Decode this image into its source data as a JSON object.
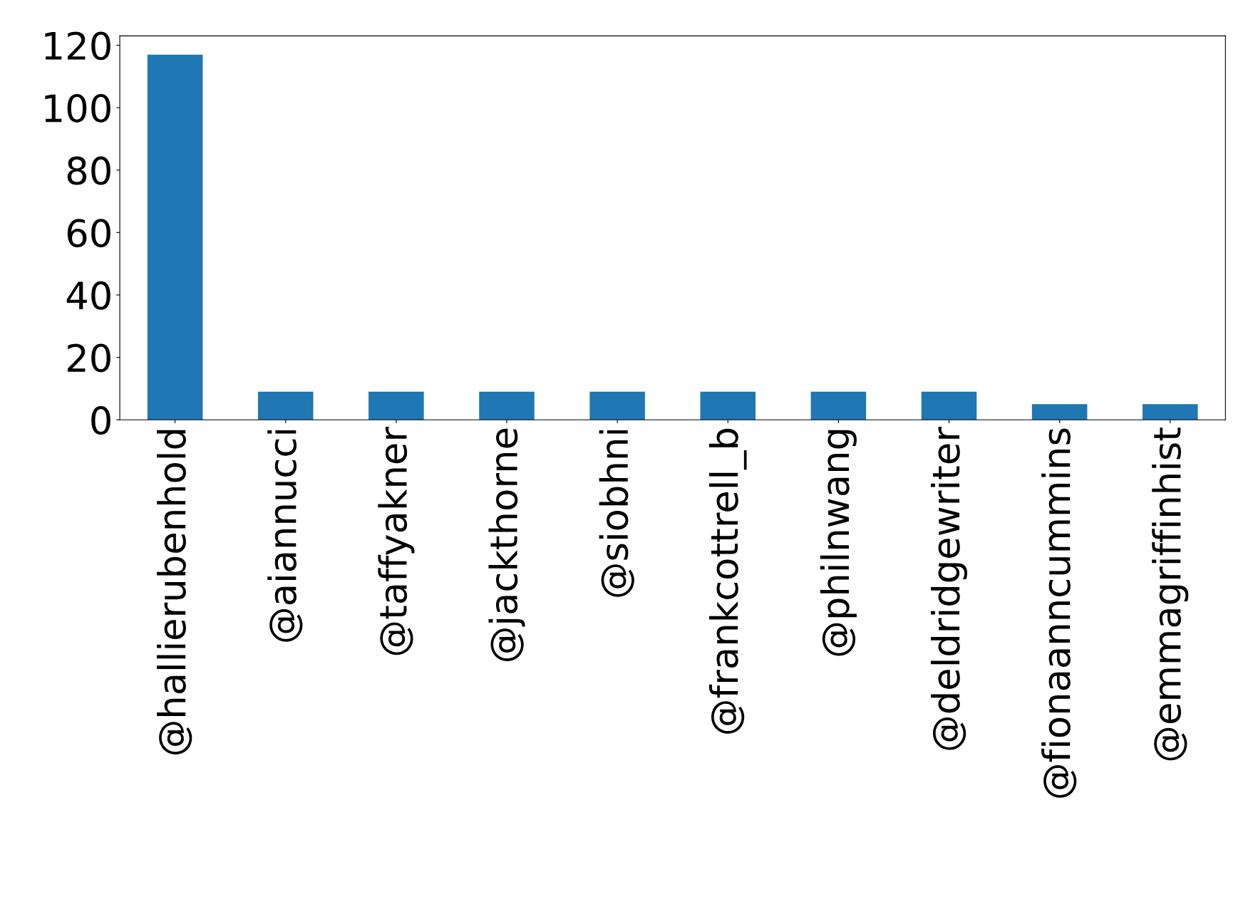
{
  "chart_data": {
    "type": "bar",
    "categories": [
      "@hallierubenhold",
      "@aiannucci",
      "@taffyakner",
      "@jackthorne",
      "@siobhni",
      "@frankcottrell_b",
      "@philnwang",
      "@deldridgewriter",
      "@fionaanncummins",
      "@emmagriffinhist"
    ],
    "values": [
      117,
      9,
      9,
      9,
      9,
      9,
      9,
      9,
      5,
      5
    ],
    "color": "#1f77b4",
    "ylim": [
      0,
      123
    ],
    "yticks": [
      0,
      20,
      40,
      60,
      80,
      100,
      120
    ],
    "grid": false,
    "legend": false
  }
}
